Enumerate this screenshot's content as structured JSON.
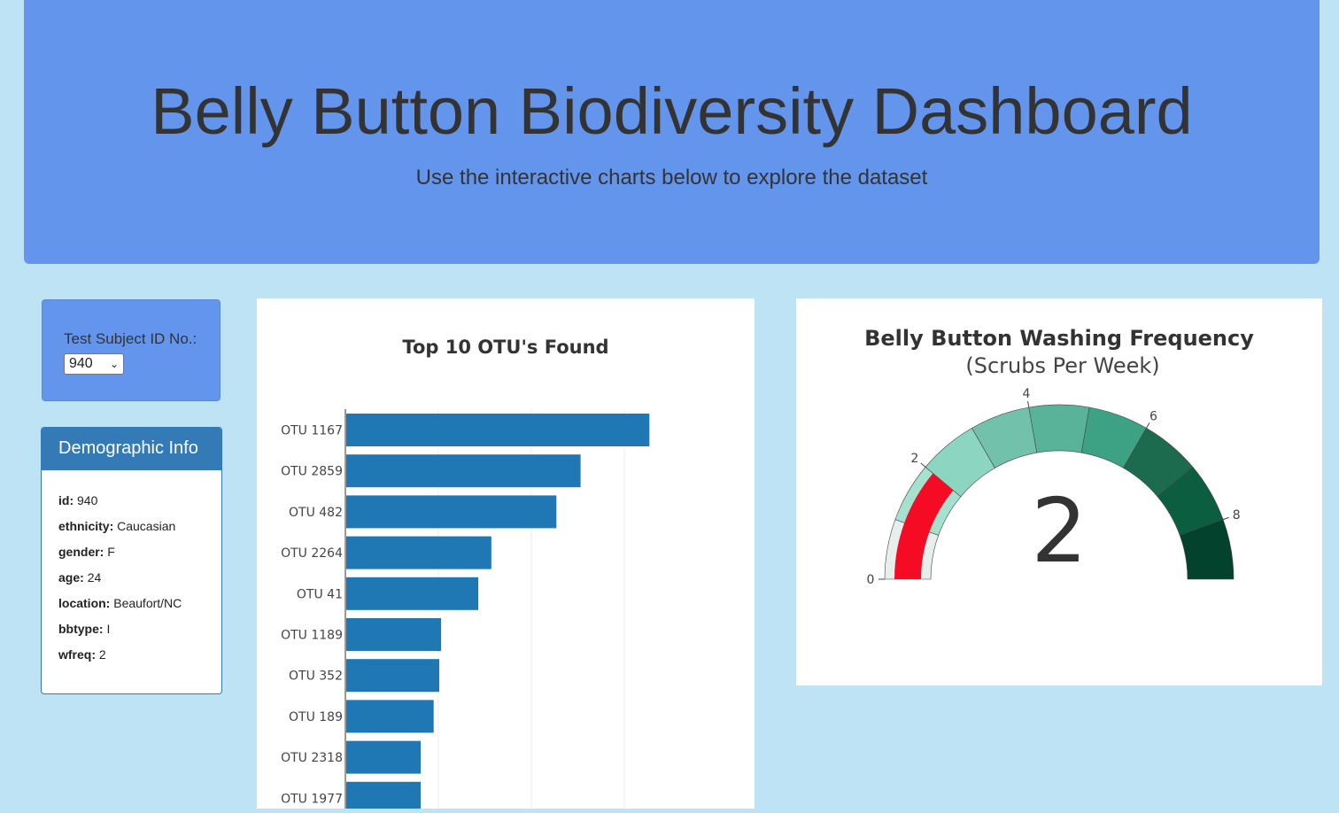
{
  "header": {
    "title": "Belly Button Biodiversity Dashboard",
    "subtitle": "Use the interactive charts below to explore the dataset"
  },
  "selector": {
    "label": "Test Subject ID No.:",
    "selected": "940"
  },
  "demographics": {
    "title": "Demographic Info",
    "rows": [
      {
        "key": "id:",
        "value": "940"
      },
      {
        "key": "ethnicity:",
        "value": "Caucasian"
      },
      {
        "key": "gender:",
        "value": "F"
      },
      {
        "key": "age:",
        "value": "24"
      },
      {
        "key": "location:",
        "value": "Beaufort/NC"
      },
      {
        "key": "bbtype:",
        "value": "I"
      },
      {
        "key": "wfreq:",
        "value": "2"
      }
    ]
  },
  "chart_data": [
    {
      "type": "bar",
      "orientation": "horizontal",
      "title": "Top 10 OTU's Found",
      "categories": [
        "OTU 1167",
        "OTU 2859",
        "OTU 482",
        "OTU 2264",
        "OTU 41",
        "OTU 1189",
        "OTU 352",
        "OTU 189",
        "OTU 2318",
        "OTU 1977"
      ],
      "values": [
        163,
        126,
        113,
        78,
        71,
        51,
        50,
        47,
        40,
        40
      ],
      "xlim": [
        0,
        200
      ],
      "grid": true,
      "color": "#1f77b4"
    },
    {
      "type": "gauge",
      "title": "Belly Button Washing Frequency",
      "subtitle": "(Scrubs Per Week)",
      "value": 2,
      "range": [
        0,
        9
      ],
      "ticks": [
        "0",
        "2",
        "4",
        "6",
        "8"
      ],
      "bar_color": "#f50b24",
      "step_colors": [
        "#e6efec",
        "#a6e0cf",
        "#8cd5c0",
        "#72c1aa",
        "#58b398",
        "#3da283",
        "#1c6b4f",
        "#0b5e40",
        "#03422c"
      ]
    }
  ]
}
